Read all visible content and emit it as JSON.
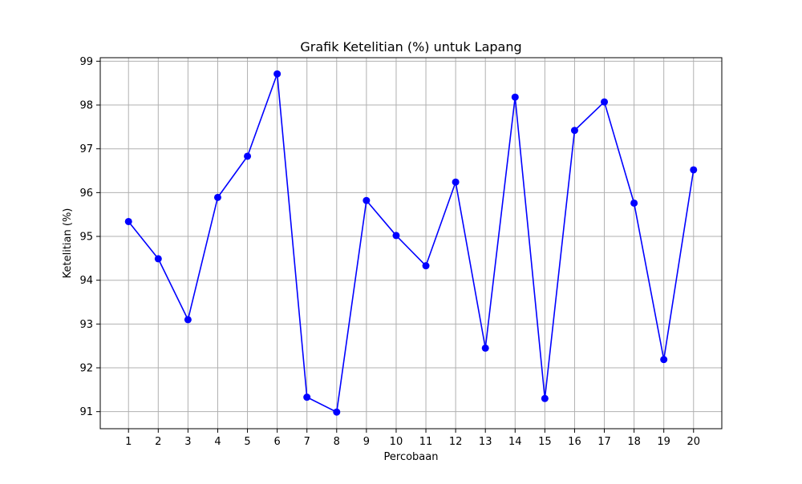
{
  "chart_data": {
    "type": "line",
    "title": "Grafik Ketelitian (%) untuk Lapang",
    "xlabel": "Percobaan",
    "ylabel": "Ketelitian (%)",
    "x": [
      1,
      2,
      3,
      4,
      5,
      6,
      7,
      8,
      9,
      10,
      11,
      12,
      13,
      14,
      15,
      16,
      17,
      18,
      19,
      20
    ],
    "x_tick_labels": [
      "1",
      "2",
      "3",
      "4",
      "5",
      "6",
      "7",
      "8",
      "9",
      "10",
      "11",
      "12",
      "13",
      "14",
      "15",
      "16",
      "17",
      "18",
      "19",
      "20"
    ],
    "xlim": [
      0.05,
      20.95
    ],
    "y_ticks": [
      91,
      92,
      93,
      94,
      95,
      96,
      97,
      98,
      99
    ],
    "y_tick_labels": [
      "91",
      "92",
      "93",
      "94",
      "95",
      "96",
      "97",
      "98",
      "99"
    ],
    "ylim": [
      90.61,
      99.08
    ],
    "grid": true,
    "series": [
      {
        "values": [
          95.34,
          94.49,
          93.1,
          95.89,
          96.83,
          98.71,
          91.33,
          90.99,
          95.82,
          95.02,
          94.33,
          96.24,
          92.45,
          98.18,
          91.3,
          97.42,
          98.07,
          95.76,
          92.19,
          96.52
        ],
        "color": "#0000ff",
        "marker": "circle"
      }
    ],
    "colors": {
      "line": "#0000ff",
      "grid": "#b0b0b0",
      "axis": "#000000"
    }
  }
}
